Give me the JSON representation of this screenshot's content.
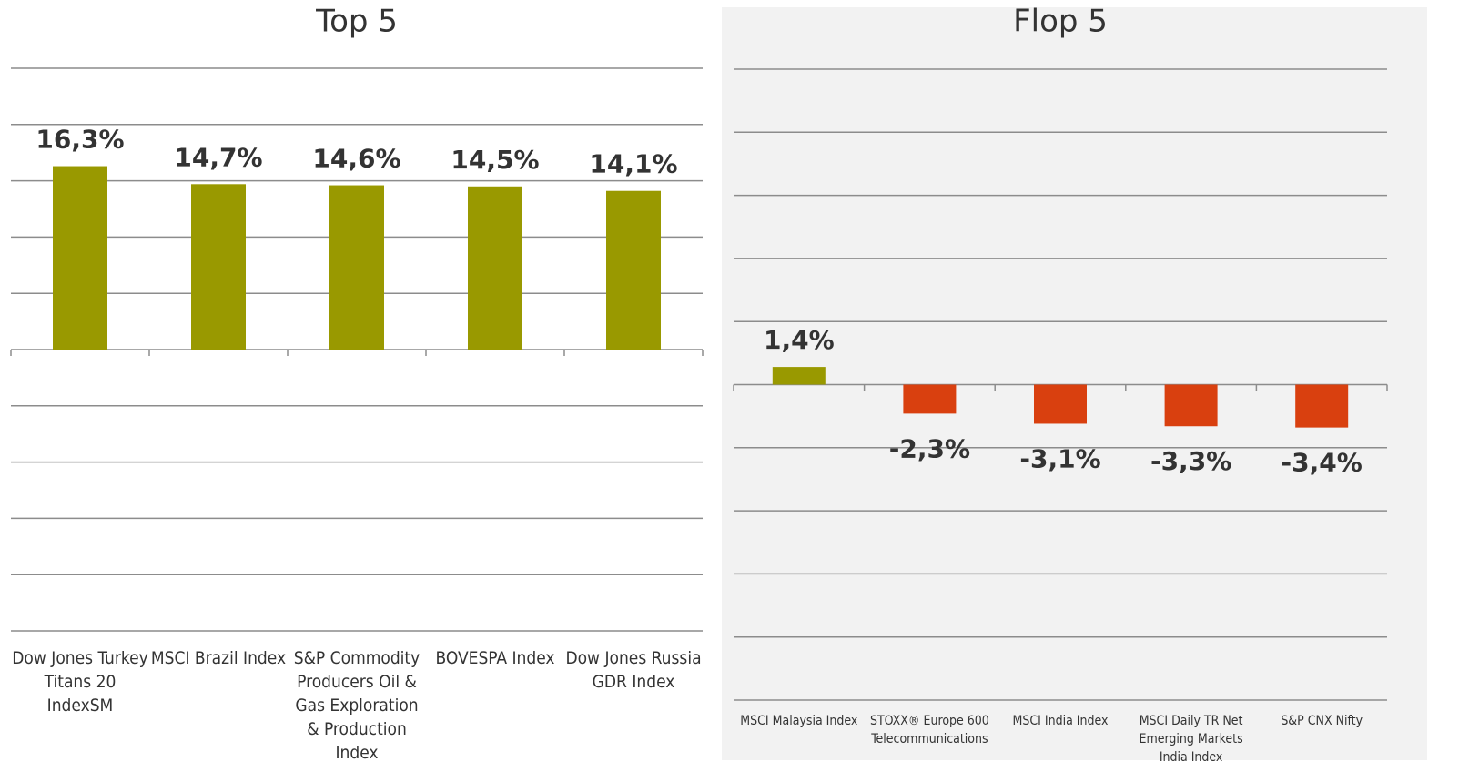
{
  "chart_data": [
    {
      "type": "bar",
      "title": "Top 5",
      "categories": [
        "Dow Jones Turkey Titans 20 IndexSM",
        "MSCI Brazil Index",
        "S&P Commodity Producers Oil & Gas Exploration & Production Index",
        "BOVESPA Index",
        "Dow Jones Russia GDR Index"
      ],
      "values": [
        16.3,
        14.7,
        14.6,
        14.5,
        14.1
      ],
      "value_labels": [
        "16,3%",
        "14,7%",
        "14,6%",
        "14,5%",
        "14,1%"
      ],
      "colors": [
        "#999900",
        "#999900",
        "#999900",
        "#999900",
        "#999900"
      ],
      "ylim": [
        -25,
        25
      ],
      "yticks": [
        -25,
        -20,
        -15,
        -10,
        -5,
        0,
        5,
        10,
        15,
        20,
        25
      ],
      "grid": true
    },
    {
      "type": "bar",
      "title": "Flop 5",
      "categories": [
        "MSCI Malaysia Index",
        "STOXX® Europe 600 Telecommunications",
        "MSCI India Index",
        "MSCI Daily TR Net Emerging Markets India Index",
        "S&P CNX Nifty"
      ],
      "values": [
        1.4,
        -2.3,
        -3.1,
        -3.3,
        -3.4
      ],
      "value_labels": [
        "1,4%",
        "-2,3%",
        "-3,1%",
        "-3,3%",
        "-3,4%"
      ],
      "colors": [
        "#999900",
        "#d9400f",
        "#d9400f",
        "#d9400f",
        "#d9400f"
      ],
      "ylim": [
        -25,
        25
      ],
      "yticks": [
        -25,
        -20,
        -15,
        -10,
        -5,
        0,
        5,
        10,
        15,
        20,
        25
      ],
      "grid": true
    }
  ]
}
